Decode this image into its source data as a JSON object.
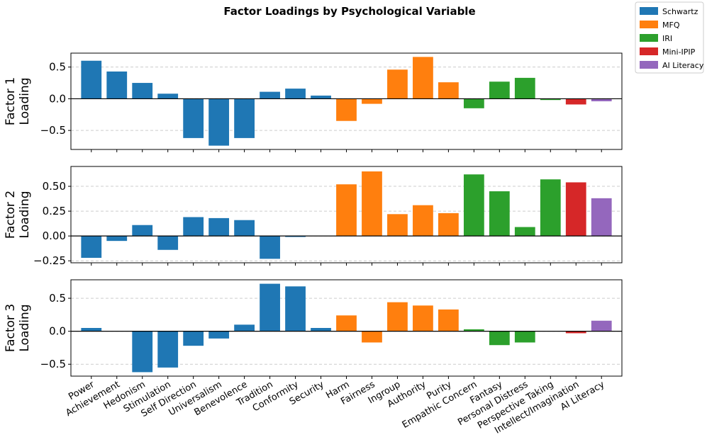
{
  "chart_data": {
    "type": "bar",
    "title": "Factor Loadings by Psychological Variable",
    "categories": [
      "Power",
      "Achievement",
      "Hedonism",
      "Stimulation",
      "Self Direction",
      "Universalism",
      "Benevolence",
      "Tradition",
      "Conformity",
      "Security",
      "Harm",
      "Fairness",
      "Ingroup",
      "Authority",
      "Purity",
      "Empathic Concern",
      "Fantasy",
      "Personal Distress",
      "Perspective Taking",
      "Intellect/Imagination",
      "AI Literacy"
    ],
    "groups": [
      "Schwartz",
      "Schwartz",
      "Schwartz",
      "Schwartz",
      "Schwartz",
      "Schwartz",
      "Schwartz",
      "Schwartz",
      "Schwartz",
      "Schwartz",
      "MFQ",
      "MFQ",
      "MFQ",
      "MFQ",
      "MFQ",
      "IRI",
      "IRI",
      "IRI",
      "IRI",
      "Mini-IPIP",
      "AI Literacy"
    ],
    "legend": [
      {
        "name": "Schwartz",
        "color": "#1f77b4"
      },
      {
        "name": "MFQ",
        "color": "#ff7f0e"
      },
      {
        "name": "IRI",
        "color": "#2ca02c"
      },
      {
        "name": "Mini-IPIP",
        "color": "#d62728"
      },
      {
        "name": "AI Literacy",
        "color": "#9467bd"
      }
    ],
    "legend_position": "top-right",
    "panels": [
      {
        "ylabel_line1": "Factor 1",
        "ylabel_line2": "Loading",
        "ylim": [
          -0.8,
          0.72
        ],
        "yticks": [
          -0.5,
          0.0,
          0.5
        ],
        "ytick_labels": [
          "−0.5",
          "0.0",
          "0.5"
        ],
        "values": [
          0.6,
          0.43,
          0.25,
          0.08,
          -0.62,
          -0.74,
          -0.62,
          0.11,
          0.16,
          0.05,
          -0.35,
          -0.08,
          0.46,
          0.66,
          0.26,
          -0.15,
          0.27,
          0.33,
          -0.02,
          -0.09,
          -0.04
        ]
      },
      {
        "ylabel_line1": "Factor 2",
        "ylabel_line2": "Loading",
        "ylim": [
          -0.27,
          0.7
        ],
        "yticks": [
          -0.25,
          0.0,
          0.25,
          0.5
        ],
        "ytick_labels": [
          "−0.25",
          "0.00",
          "0.25",
          "0.50"
        ],
        "values": [
          -0.22,
          -0.05,
          0.11,
          -0.14,
          0.19,
          0.18,
          0.16,
          -0.23,
          -0.01,
          0.0,
          0.52,
          0.65,
          0.22,
          0.31,
          0.23,
          0.62,
          0.45,
          0.09,
          0.57,
          0.54,
          0.38
        ]
      },
      {
        "ylabel_line1": "Factor 3",
        "ylabel_line2": "Loading",
        "ylim": [
          -0.68,
          0.78
        ],
        "yticks": [
          -0.5,
          0.0,
          0.5
        ],
        "ytick_labels": [
          "−0.5",
          "0.0",
          "0.5"
        ],
        "values": [
          0.05,
          0.0,
          -0.62,
          -0.55,
          -0.22,
          -0.11,
          0.1,
          0.72,
          0.68,
          0.05,
          0.24,
          -0.17,
          0.44,
          0.39,
          0.33,
          0.03,
          -0.21,
          -0.17,
          0.0,
          -0.03,
          0.16
        ]
      }
    ]
  }
}
